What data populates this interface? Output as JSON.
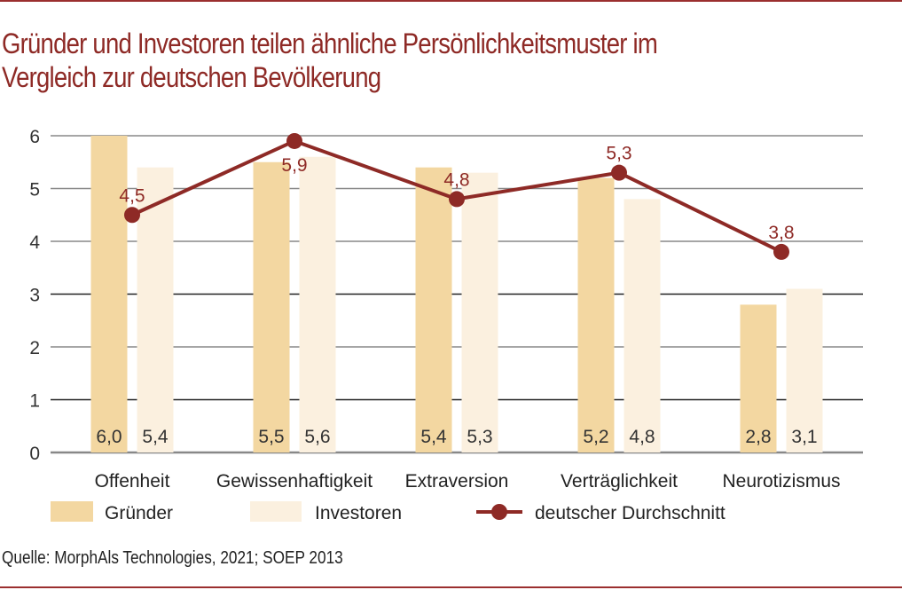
{
  "title": "Gründer und Investoren teilen ähnliche Persönlichkeitsmuster im Vergleich zur deutschen Bevölkerung",
  "title_lines": [
    "Gründer und Investoren teilen ähnliche Persönlichkeitsmuster im",
    "Vergleich zur deutschen Bevölkerung"
  ],
  "source": "Quelle: MorphAls Technologies, 2021; SOEP 2013",
  "colors": {
    "accent": "#8e2a26",
    "gruender": "#f3d7a1",
    "investoren": "#fbf0df",
    "line": "#8e2a26",
    "grid_dark": "#222222",
    "grid_light": "#888888"
  },
  "chart_data": {
    "type": "bar",
    "title": "Gründer und Investoren teilen ähnliche Persönlichkeitsmuster im Vergleich zur deutschen Bevölkerung",
    "xlabel": "",
    "ylabel": "",
    "ylim": [
      0,
      6
    ],
    "yticks": [
      0,
      1,
      2,
      3,
      4,
      5,
      6
    ],
    "grid": true,
    "categories": [
      "Offenheit",
      "Gewissenhaftigkeit",
      "Extraversion",
      "Verträglichkeit",
      "Neurotizismus"
    ],
    "series": [
      {
        "name": "Gründer",
        "type": "bar",
        "values": [
          6.0,
          5.5,
          5.4,
          5.2,
          2.8
        ],
        "labels": [
          "6,0",
          "5,5",
          "5,4",
          "5,2",
          "2,8"
        ]
      },
      {
        "name": "Investoren",
        "type": "bar",
        "values": [
          5.4,
          5.6,
          5.3,
          4.8,
          3.1
        ],
        "labels": [
          "5,4",
          "5,6",
          "5,3",
          "4,8",
          "3,1"
        ]
      },
      {
        "name": "deutscher Durchschnitt",
        "type": "line",
        "values": [
          4.5,
          5.9,
          4.8,
          5.3,
          3.8
        ],
        "labels": [
          "4,5",
          "5,9",
          "4,8",
          "5,3",
          "3,8"
        ]
      }
    ],
    "legend": [
      "Gründer",
      "Investoren",
      "deutscher Durchschnitt"
    ],
    "legend_position": "bottom"
  }
}
